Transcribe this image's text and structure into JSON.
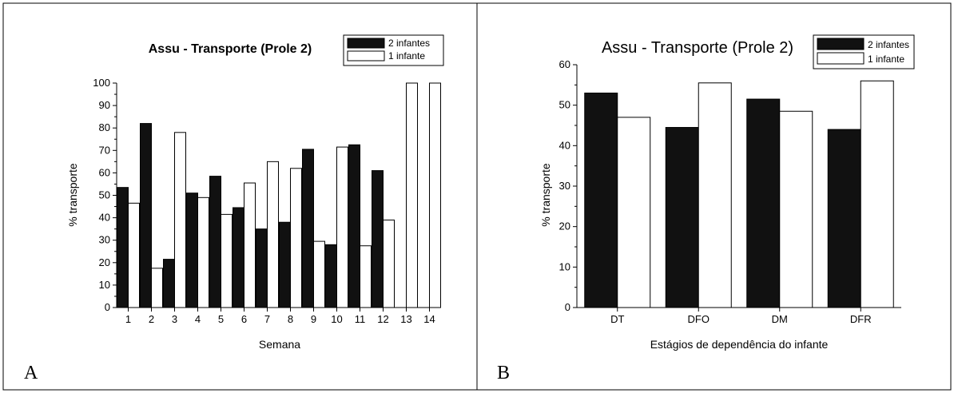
{
  "panels": [
    {
      "letter": "A"
    },
    {
      "letter": "B"
    }
  ],
  "chart_data": [
    {
      "type": "bar",
      "title": "Assu - Transporte (Prole 2)",
      "xlabel": "Semana",
      "ylabel": "% transporte",
      "categories": [
        "1",
        "2",
        "3",
        "4",
        "5",
        "6",
        "7",
        "8",
        "9",
        "10",
        "11",
        "12",
        "13",
        "14"
      ],
      "ylim": [
        0,
        100
      ],
      "yticks": [
        0,
        10,
        20,
        30,
        40,
        50,
        60,
        70,
        80,
        90,
        100
      ],
      "legend_position": "top-right",
      "series": [
        {
          "name": "2 infantes",
          "color": "#111111",
          "values": [
            53.5,
            82,
            21.5,
            51,
            58.5,
            44.5,
            35,
            38,
            70.5,
            28,
            72.5,
            61,
            0,
            0
          ]
        },
        {
          "name": "1 infante",
          "color": "#ffffff",
          "values": [
            46.5,
            17.5,
            78,
            49,
            41.5,
            55.5,
            65,
            62,
            29.5,
            71.5,
            27.5,
            39,
            100,
            100
          ]
        }
      ]
    },
    {
      "type": "bar",
      "title": "Assu - Transporte (Prole 2)",
      "xlabel": "Estágios de dependência do infante",
      "ylabel": "% transporte",
      "categories": [
        "DT",
        "DFO",
        "DM",
        "DFR"
      ],
      "ylim": [
        0,
        60
      ],
      "yticks": [
        0,
        10,
        20,
        30,
        40,
        50,
        60
      ],
      "legend_position": "top-right",
      "series": [
        {
          "name": "2 infantes",
          "color": "#111111",
          "values": [
            53,
            44.5,
            51.5,
            44
          ]
        },
        {
          "name": "1 infante",
          "color": "#ffffff",
          "values": [
            47,
            55.5,
            48.5,
            56
          ]
        }
      ]
    }
  ]
}
